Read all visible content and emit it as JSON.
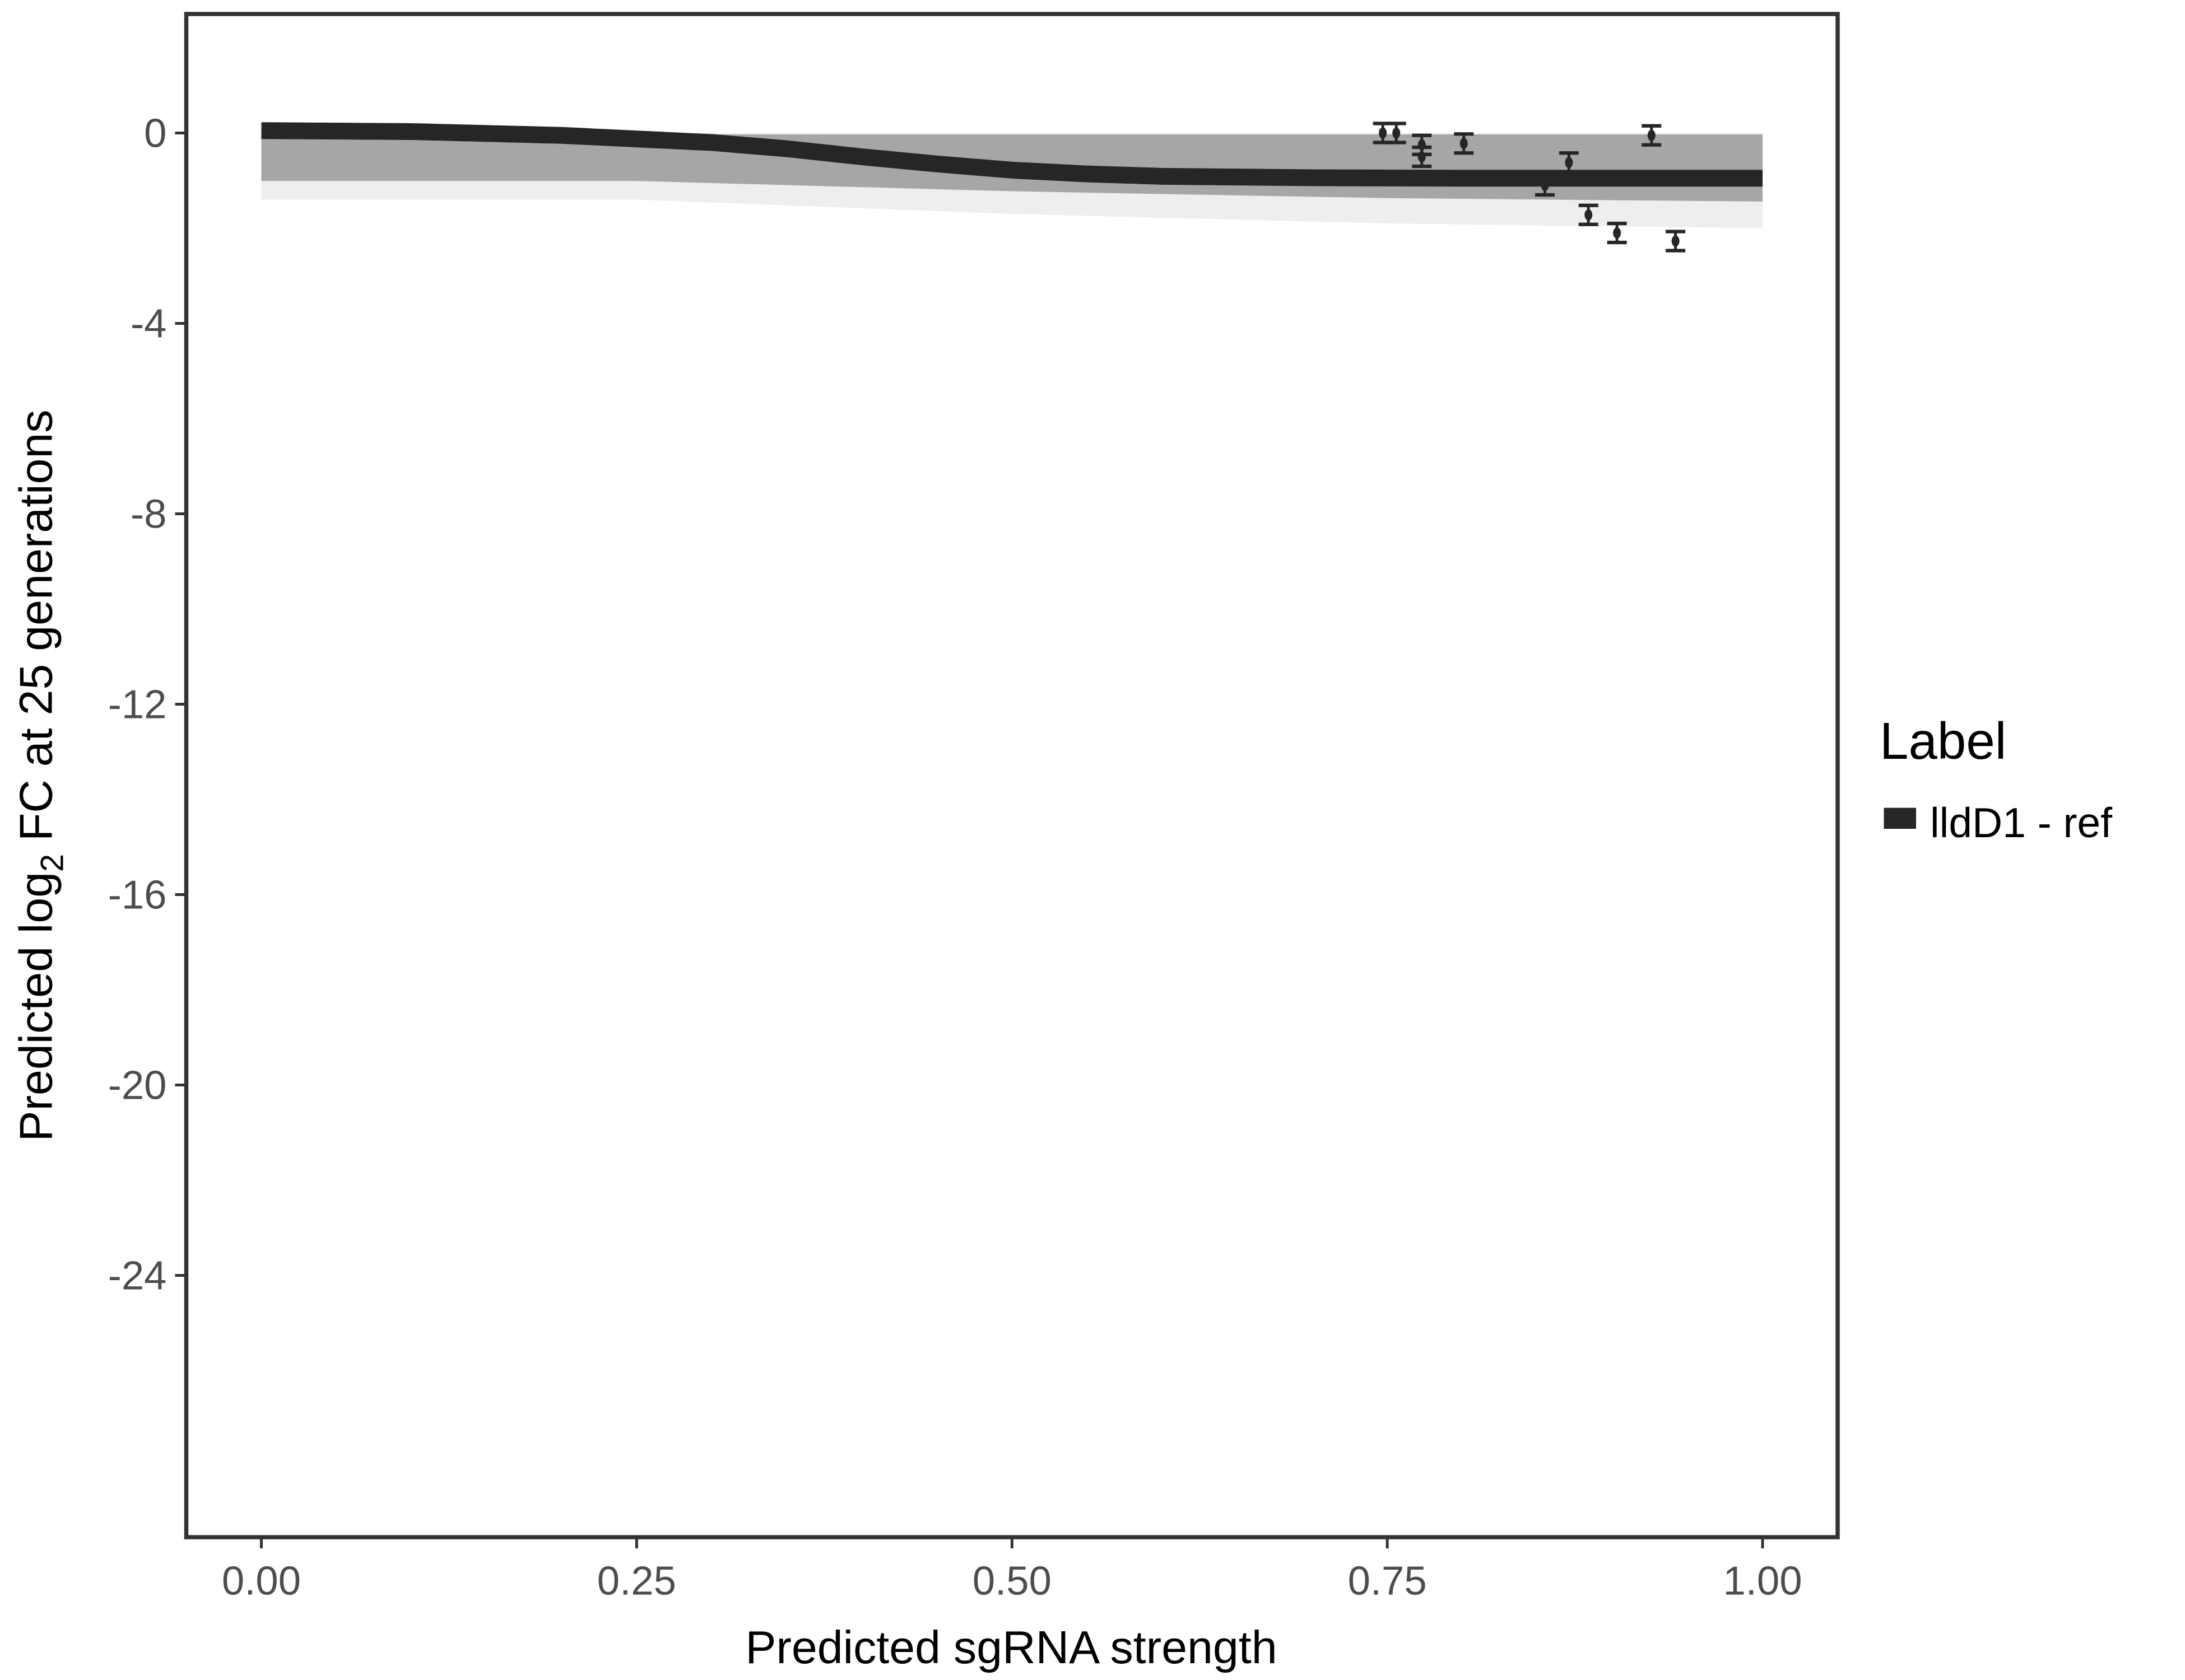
{
  "chart_data": {
    "type": "line",
    "xlabel": "Predicted sgRNA strength",
    "ylabel_parts": {
      "pre": "Predicted  log",
      "sub": "2",
      "post": " FC at 25 generations"
    },
    "xlim": [
      -0.05,
      1.05
    ],
    "ylim": [
      -29.5,
      2.5
    ],
    "x_ticks": [
      0,
      0.25,
      0.5,
      0.75,
      1
    ],
    "x_tick_labels": [
      "0.00",
      "0.25",
      "0.50",
      "0.75",
      "1.00"
    ],
    "y_ticks": [
      0,
      -4,
      -8,
      -12,
      -16,
      -20,
      -24
    ],
    "y_tick_labels": [
      "0",
      "-4",
      "-8",
      "-12",
      "-16",
      "-20",
      "-24"
    ],
    "grid": false,
    "legend": {
      "title": "Label",
      "position": "right",
      "entries": [
        {
          "name": "lldD1 - ref",
          "color": "#262626"
        }
      ]
    },
    "fit_curve": {
      "x": [
        0,
        0.1,
        0.2,
        0.3,
        0.35,
        0.4,
        0.45,
        0.5,
        0.55,
        0.6,
        0.7,
        0.8,
        0.9,
        1.0
      ],
      "y": [
        0.05,
        0.03,
        -0.05,
        -0.2,
        -0.33,
        -0.5,
        -0.65,
        -0.78,
        -0.86,
        -0.91,
        -0.94,
        -0.95,
        -0.95,
        -0.95
      ],
      "color": "#262626"
    },
    "posterior_band": {
      "x": [
        0,
        0.25,
        0.5,
        0.75,
        1.0
      ],
      "upper": [
        0.05,
        0.0,
        0.0,
        0.0,
        0.0
      ],
      "lower": [
        -1.4,
        -1.4,
        -1.7,
        -1.9,
        -2.0
      ],
      "color": "#a6a6a6"
    },
    "points": {
      "x": [
        0.747,
        0.756,
        0.773,
        0.773,
        0.801,
        0.855,
        0.871,
        0.884,
        0.903,
        0.926,
        0.942
      ],
      "y": [
        0.0,
        0.0,
        -0.25,
        -0.5,
        -0.22,
        -1.1,
        -0.62,
        -1.72,
        -2.1,
        -0.05,
        -2.27
      ],
      "err": [
        0.2,
        0.2,
        0.2,
        0.2,
        0.2,
        0.2,
        0.2,
        0.2,
        0.2,
        0.2,
        0.2
      ],
      "color": "#262626"
    }
  }
}
